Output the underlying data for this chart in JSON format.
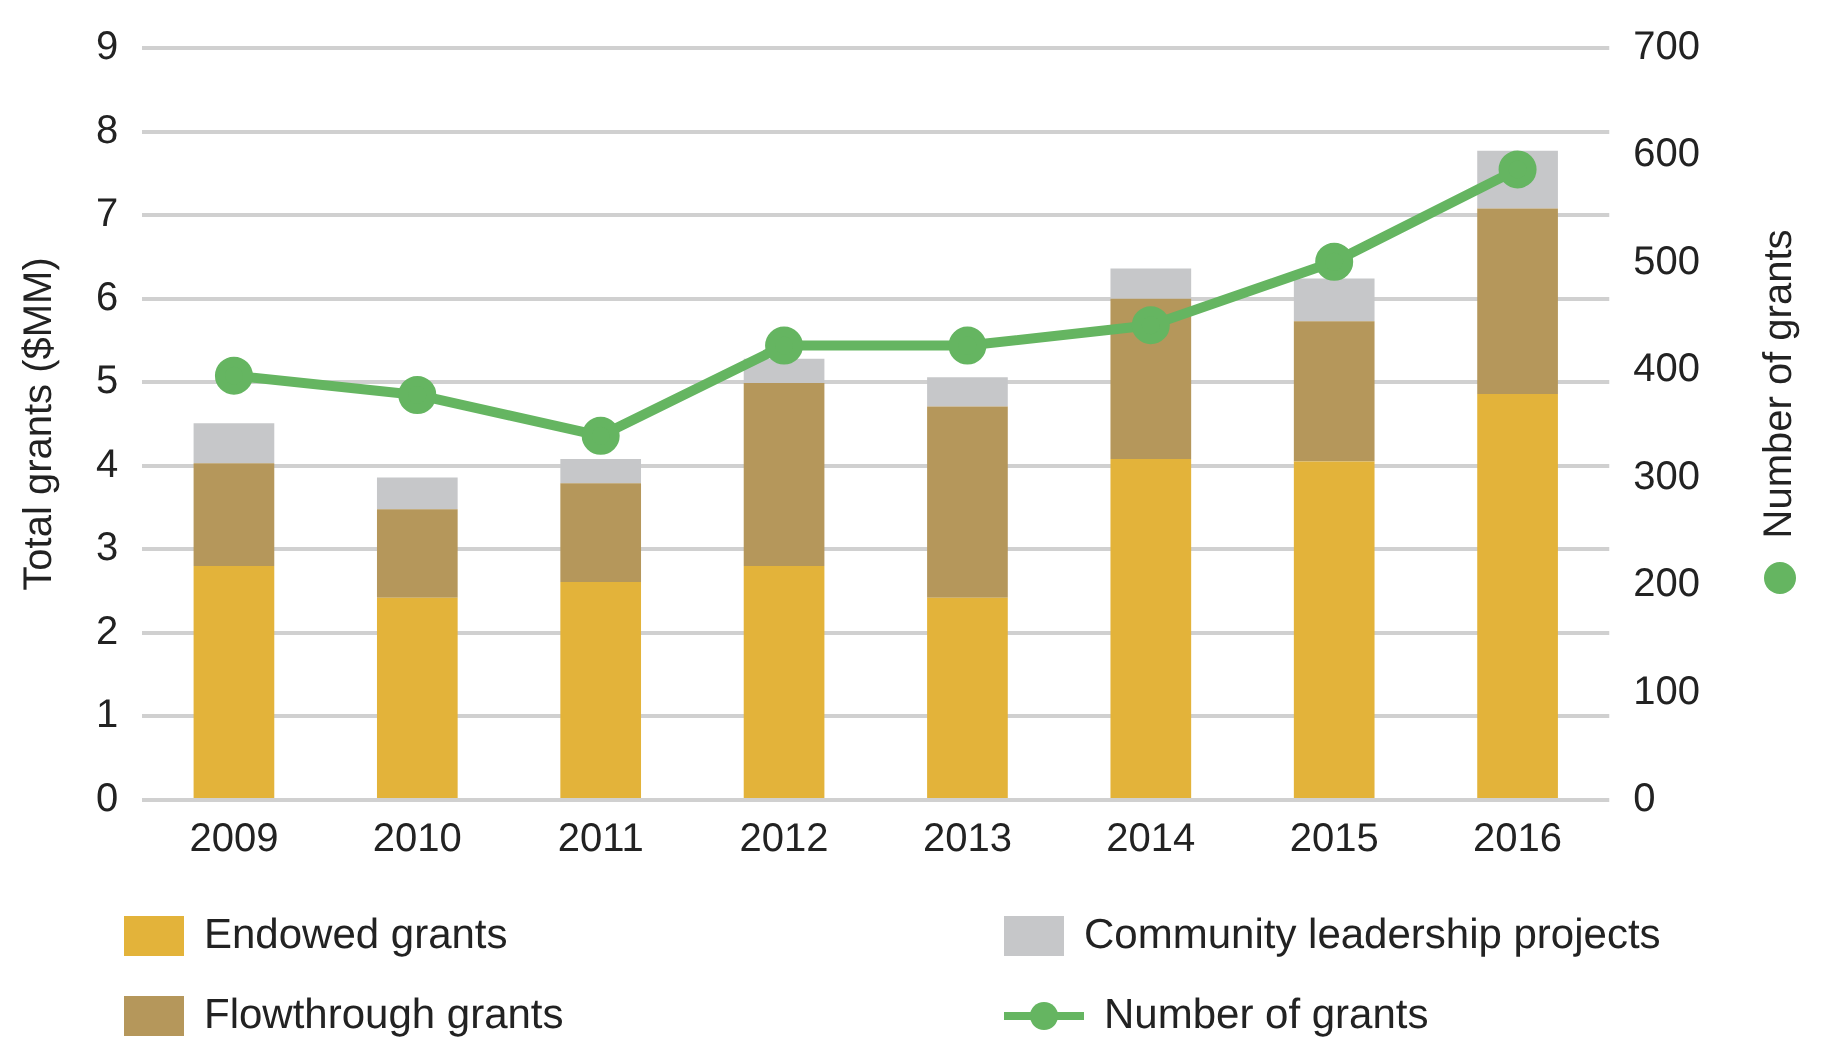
{
  "chart_data": {
    "type": "bar",
    "stacked": true,
    "categories": [
      "2009",
      "2010",
      "2011",
      "2012",
      "2013",
      "2014",
      "2015",
      "2016"
    ],
    "ylabel": "Total grants ($MM)",
    "y2label": "Number of grants",
    "ylim": [
      0,
      9
    ],
    "yticks": [
      0,
      1,
      2,
      3,
      4,
      5,
      6,
      7,
      8,
      9
    ],
    "y2lim": [
      0,
      700
    ],
    "y2ticks": [
      0,
      100,
      200,
      300,
      400,
      500,
      600,
      700
    ],
    "grid": "y",
    "legend": "bottom",
    "marker": "circle",
    "line_style": "solid",
    "series": [
      {
        "name": "Endowed grants",
        "color": "#e3b33a",
        "values": [
          2.8,
          2.42,
          2.61,
          2.8,
          2.42,
          4.08,
          4.05,
          4.86
        ]
      },
      {
        "name": "Flowthrough grants",
        "color": "#b5975b",
        "values": [
          1.23,
          1.06,
          1.18,
          2.19,
          2.29,
          1.92,
          1.68,
          2.22
        ]
      },
      {
        "name": "Community leadership projects",
        "color": "#c6c7c9",
        "values": [
          0.48,
          0.38,
          0.29,
          0.29,
          0.35,
          0.36,
          0.51,
          0.69
        ]
      },
      {
        "name": "Number of grants",
        "type": "line",
        "axis": "y2",
        "color": "#65b561",
        "values": [
          395,
          377,
          339,
          423,
          423,
          442,
          501,
          587
        ]
      }
    ]
  }
}
